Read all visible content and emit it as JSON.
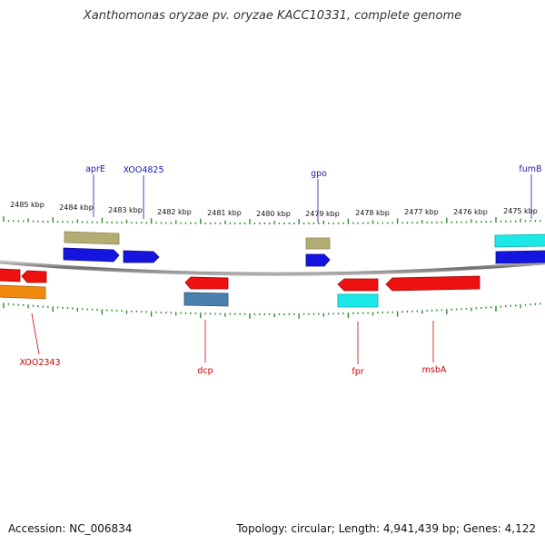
{
  "title": "Xanthomonas oryzae pv. oryzae KACC10331, complete genome",
  "footer": {
    "accession": "Accession: NC_006834",
    "summary": "Topology: circular; Length: 4,941,439 bp; Genes: 4,122"
  },
  "ruler": {
    "ticks": [
      "2485 kbp",
      "2484 kbp",
      "2483 kbp",
      "2482 kbp",
      "2481 kbp",
      "2480 kbp",
      "2479 kbp",
      "2478 kbp",
      "2477 kbp",
      "2476 kbp",
      "2475 kbp"
    ]
  },
  "genes_top": [
    {
      "name": "aprE"
    },
    {
      "name": "XOO4825"
    },
    {
      "name": "gpo"
    },
    {
      "name": "fumB"
    }
  ],
  "genes_bottom": [
    {
      "name": "XOO2343"
    },
    {
      "name": "dcp"
    },
    {
      "name": "fpr"
    },
    {
      "name": "msbA"
    }
  ],
  "colors": {
    "top_label": "#1a1aa8",
    "bottom_label": "#cc0000",
    "tick": "#2f8a2f",
    "backbone": "#8a8a8a",
    "blue_feature": "#1515e0",
    "red_feature": "#ee1111",
    "olive_feature": "#b3ad74",
    "cyan_feature": "#1ce8e8",
    "steel_feature": "#4b7fae",
    "orange_feature": "#f38a10"
  }
}
